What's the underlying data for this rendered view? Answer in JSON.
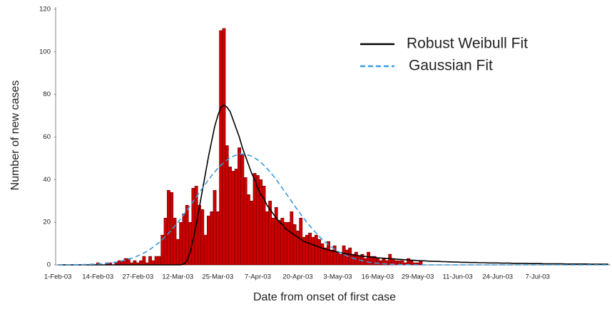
{
  "chart_data": {
    "type": "bar",
    "y_label": "Number of new cases",
    "x_label": "Date from onset of first case",
    "ylim": [
      0,
      120
    ],
    "yticks": [
      0,
      20,
      40,
      60,
      80,
      100,
      120
    ],
    "grid": false,
    "legend": "top-right",
    "color": "#cc0000",
    "categories": [
      "1-Feb-03",
      null,
      null,
      null,
      null,
      null,
      null,
      null,
      null,
      null,
      null,
      null,
      null,
      "14-Feb-03",
      null,
      null,
      null,
      null,
      null,
      null,
      null,
      null,
      null,
      null,
      null,
      null,
      "27-Feb-03",
      null,
      null,
      null,
      null,
      null,
      null,
      null,
      null,
      null,
      null,
      null,
      null,
      "12-Mar-03",
      null,
      null,
      null,
      null,
      null,
      null,
      null,
      null,
      null,
      null,
      null,
      null,
      "25-Mar-03",
      null,
      null,
      null,
      null,
      null,
      null,
      null,
      null,
      null,
      null,
      null,
      null,
      "7-Apr-03",
      null,
      null,
      null,
      null,
      null,
      null,
      null,
      null,
      null,
      null,
      null,
      null,
      "20-Apr-03",
      null,
      null,
      null,
      null,
      null,
      null,
      null,
      null,
      null,
      null,
      null,
      null,
      "3-May-03",
      null,
      null,
      null,
      null,
      null,
      null,
      null,
      null,
      null,
      null,
      null,
      null,
      "16-May-03",
      null,
      null,
      null,
      null,
      null,
      null,
      null,
      null,
      null,
      null,
      null,
      null,
      "29-May-03",
      null,
      null,
      null,
      null,
      null,
      null,
      null,
      null,
      null,
      null,
      null,
      null,
      "11-Jun-03",
      null,
      null,
      null,
      null,
      null,
      null,
      null,
      null,
      null,
      null,
      null,
      null,
      "24-Jun-03",
      null,
      null,
      null,
      null,
      null,
      null,
      null,
      null,
      null,
      null,
      null,
      null,
      "7-Jul-03",
      null,
      null,
      null,
      null,
      null,
      null,
      null,
      null,
      null,
      null,
      null,
      null,
      null,
      null,
      null,
      null,
      null,
      null,
      null,
      null,
      null,
      null,
      null
    ],
    "values": [
      0,
      0,
      0,
      0,
      0,
      0,
      0,
      0,
      0,
      0,
      0,
      0,
      0,
      1,
      0,
      0,
      1,
      1,
      0,
      1,
      2,
      2,
      3,
      3,
      1,
      2,
      1,
      2,
      4,
      1,
      4,
      2,
      4,
      4,
      14,
      22,
      35,
      34,
      22,
      12,
      20,
      24,
      28,
      20,
      36,
      37,
      28,
      26,
      14,
      23,
      25,
      35,
      25,
      110,
      111,
      56,
      46,
      44,
      45,
      55,
      52,
      41,
      33,
      30,
      43,
      42,
      40,
      37,
      25,
      30,
      22,
      27,
      21,
      22,
      20,
      20,
      25,
      19,
      16,
      22,
      13,
      14,
      15,
      13,
      14,
      12,
      10,
      8,
      11,
      7,
      9,
      6,
      5,
      9,
      7,
      8,
      5,
      6,
      4,
      5,
      3,
      6,
      4,
      4,
      3,
      2,
      3,
      2,
      5,
      3,
      2,
      2,
      2,
      1,
      3,
      2,
      1,
      1,
      2,
      0,
      0,
      0,
      0,
      0,
      0,
      0,
      0,
      0,
      0,
      0,
      0,
      0,
      0,
      0,
      0,
      0,
      0,
      0,
      0,
      0,
      0,
      0,
      0,
      0,
      0,
      0,
      0,
      0,
      0,
      0,
      0,
      0,
      0,
      0,
      0,
      0,
      0,
      0,
      0,
      0,
      0,
      0,
      0,
      0,
      0,
      0,
      0,
      0,
      0,
      0,
      0,
      0,
      0,
      0,
      0,
      0,
      0,
      0,
      0,
      0
    ],
    "series": [
      {
        "name": "Robust Weibull Fit",
        "color": "#000000",
        "dashed": false,
        "values": [
          0,
          0,
          0,
          0,
          0,
          0,
          0,
          0,
          0,
          0,
          0,
          0,
          0,
          0,
          0,
          0,
          0,
          0,
          0,
          0,
          0,
          0,
          0,
          0,
          0,
          0,
          0,
          0,
          0,
          0,
          0,
          0,
          0,
          0,
          0,
          0,
          0,
          0,
          0,
          0,
          0,
          0.5,
          2,
          6,
          12,
          19,
          27,
          35,
          43,
          51,
          58,
          65,
          70,
          74,
          75,
          74,
          72,
          68,
          64,
          60,
          55,
          51,
          47,
          43,
          40,
          36,
          33,
          31,
          28,
          26,
          24,
          22,
          20,
          19,
          17,
          16,
          15,
          14,
          13,
          12,
          11,
          10.5,
          10,
          9.4,
          8.8,
          8.3,
          7.8,
          7.4,
          7,
          6.6,
          6.3,
          6,
          5.7,
          5.4,
          5.1,
          4.9,
          4.7,
          4.5,
          4.3,
          4.1,
          3.9,
          3.8,
          3.6,
          3.5,
          3.3,
          3.2,
          3.1,
          3,
          2.9,
          2.8,
          2.7,
          2.6,
          2.5,
          2.4,
          2.3,
          2.2,
          2.1,
          2,
          1.9,
          1.9,
          1.8,
          1.7,
          1.7,
          1.6,
          1.6,
          1.5,
          1.5,
          1.4,
          1.4,
          1.3,
          1.3,
          1.2,
          1.2,
          1.2,
          1.1,
          1.1,
          1.1,
          1,
          1,
          1,
          0.9,
          0.9,
          0.9,
          0.9,
          0.8,
          0.8,
          0.8,
          0.8,
          0.7,
          0.7,
          0.7,
          0.7,
          0.7,
          0.6,
          0.6,
          0.6,
          0.6,
          0.6,
          0.5,
          0.5,
          0.5,
          0.5,
          0.5,
          0.5,
          0.5,
          0.4,
          0.4,
          0.4,
          0.4,
          0.4,
          0.4,
          0.4,
          0.4,
          0.3,
          0.3,
          0.3,
          0.3,
          0.3,
          0.3,
          0.3
        ]
      },
      {
        "name": "Gaussian Fit",
        "color": "#3b9be0",
        "dashed": true,
        "values": [
          0,
          0,
          0,
          0,
          0,
          0,
          0.1,
          0.1,
          0.1,
          0.2,
          0.2,
          0.3,
          0.3,
          0.4,
          0.5,
          0.6,
          0.8,
          0.9,
          1.1,
          1.3,
          1.6,
          1.9,
          2.3,
          2.7,
          3.1,
          3.6,
          4.2,
          4.9,
          5.6,
          6.4,
          7.3,
          8.4,
          9.5,
          10.6,
          11.9,
          13.4,
          14.9,
          16.5,
          18.2,
          19.9,
          21.8,
          23.7,
          25.7,
          27.7,
          29.8,
          31.9,
          33.9,
          36.0,
          38.0,
          40.0,
          41.9,
          43.6,
          45.3,
          46.7,
          48.1,
          49.3,
          50.2,
          51.0,
          51.5,
          51.9,
          52,
          51.9,
          51.5,
          51.0,
          50.2,
          49.3,
          48.1,
          46.7,
          45.3,
          43.6,
          41.9,
          40.0,
          38.0,
          36.0,
          33.9,
          31.9,
          29.8,
          27.7,
          25.7,
          23.7,
          21.8,
          19.9,
          18.2,
          16.5,
          14.9,
          13.4,
          11.9,
          10.6,
          9.5,
          8.4,
          7.3,
          6.4,
          5.6,
          4.9,
          4.2,
          3.6,
          3.1,
          2.7,
          2.3,
          1.9,
          1.6,
          1.3,
          1.1,
          0.9,
          0.8,
          0.6,
          0.5,
          0.4,
          0.3,
          0.3,
          0.2,
          0.2,
          0.1,
          0.1,
          0.1,
          0,
          0,
          0,
          0,
          0,
          0,
          0,
          0,
          0,
          0,
          0,
          0,
          0,
          0,
          0,
          0,
          0,
          0,
          0,
          0,
          0,
          0,
          0,
          0,
          0,
          0,
          0,
          0,
          0,
          0,
          0,
          0,
          0,
          0,
          0,
          0,
          0,
          0,
          0,
          0,
          0,
          0,
          0,
          0,
          0,
          0,
          0,
          0,
          0,
          0,
          0,
          0,
          0,
          0,
          0,
          0,
          0,
          0,
          0,
          0,
          0,
          0,
          0,
          0,
          0
        ]
      }
    ]
  }
}
